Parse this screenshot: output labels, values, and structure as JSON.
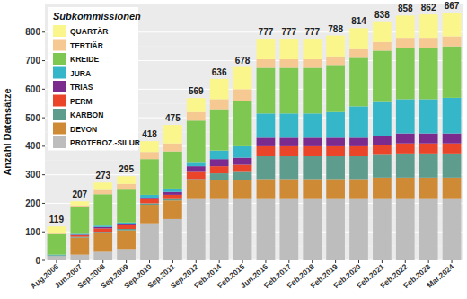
{
  "chart_data": {
    "type": "bar",
    "stacked": true,
    "data_labels": true,
    "grid": true,
    "legend": "top-left",
    "legend_title": "Subkommissionen",
    "y_label": "Anzahl Datensätze",
    "categories": [
      "Aug.2006",
      "Jun.2007",
      "Sep.2008",
      "Sep.2009",
      "Sep.2010",
      "Sep.2011",
      "Sep.2012",
      "Feb.2014",
      "Feb.2015",
      "Jun.2016",
      "Feb.2017",
      "Feb.2018",
      "Feb.2019",
      "Feb.2020",
      "Feb.2021",
      "Feb.2022",
      "Feb.2023",
      "Mar.2024"
    ],
    "totals": [
      119,
      207,
      273,
      295,
      418,
      475,
      569,
      636,
      678,
      777,
      777,
      777,
      788,
      814,
      838,
      858,
      862,
      867
    ],
    "ylim": [
      0,
      900
    ],
    "yticks": [
      0,
      100,
      200,
      300,
      400,
      500,
      600,
      700,
      800
    ],
    "series": [
      {
        "name": "PROTEROZ.-SILUR",
        "color": "#bdbdbd",
        "values": [
          15,
          20,
          30,
          40,
          130,
          145,
          215,
          215,
          215,
          215,
          215,
          215,
          215,
          215,
          215,
          215,
          215,
          215
        ]
      },
      {
        "name": "DEVON",
        "color": "#cf8a36",
        "values": [
          0,
          60,
          65,
          65,
          65,
          65,
          65,
          65,
          65,
          70,
          70,
          70,
          70,
          70,
          75,
          75,
          75,
          75
        ]
      },
      {
        "name": "KARBON",
        "color": "#5e9c8e",
        "values": [
          3,
          3,
          5,
          5,
          5,
          5,
          5,
          25,
          30,
          80,
          80,
          80,
          80,
          80,
          80,
          85,
          85,
          85
        ]
      },
      {
        "name": "PERM",
        "color": "#ea4429",
        "values": [
          0,
          5,
          12,
          13,
          15,
          15,
          25,
          25,
          25,
          35,
          35,
          35,
          35,
          35,
          35,
          35,
          35,
          35
        ]
      },
      {
        "name": "TRIAS",
        "color": "#7b2b8e",
        "values": [
          0,
          2,
          5,
          5,
          5,
          10,
          20,
          25,
          25,
          30,
          30,
          30,
          30,
          30,
          30,
          35,
          35,
          35
        ]
      },
      {
        "name": "JURA",
        "color": "#35b6c9",
        "values": [
          2,
          3,
          5,
          5,
          10,
          12,
          15,
          30,
          40,
          85,
          85,
          85,
          90,
          110,
          120,
          120,
          120,
          125
        ]
      },
      {
        "name": "KREIDE",
        "color": "#7ec852",
        "values": [
          72,
          95,
          110,
          115,
          125,
          130,
          145,
          145,
          160,
          160,
          160,
          160,
          165,
          170,
          180,
          180,
          180,
          180
        ]
      },
      {
        "name": "TERTIÄR",
        "color": "#f6c892",
        "values": [
          2,
          5,
          15,
          20,
          25,
          28,
          30,
          35,
          40,
          30,
          30,
          30,
          30,
          30,
          30,
          35,
          35,
          35
        ]
      },
      {
        "name": "QUARTÄR",
        "color": "#fbf68b",
        "values": [
          25,
          14,
          26,
          27,
          38,
          65,
          49,
          71,
          78,
          72,
          72,
          72,
          73,
          74,
          73,
          78,
          82,
          82
        ]
      }
    ]
  }
}
